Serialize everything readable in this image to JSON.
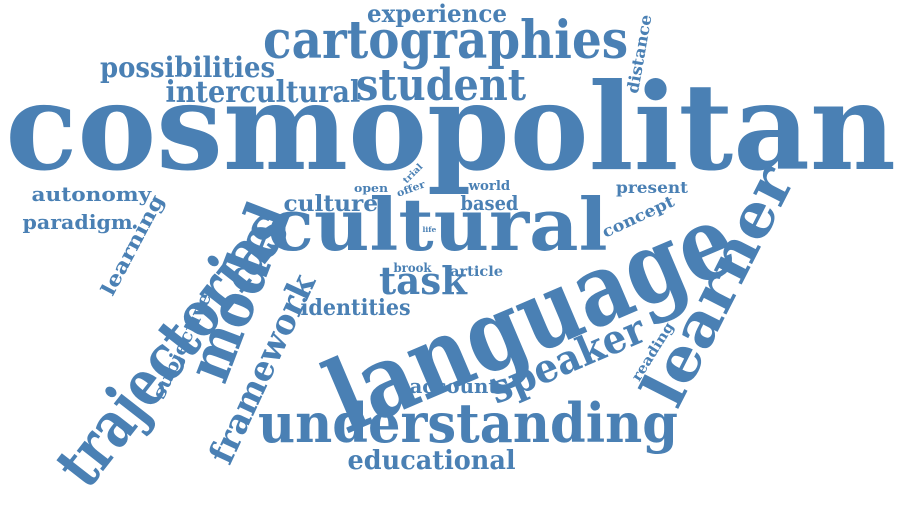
{
  "color": "#4a80b4",
  "words": [
    {
      "text": "cosmopolitan"
    },
    {
      "text": "language"
    },
    {
      "text": "cultural"
    },
    {
      "text": "understanding"
    },
    {
      "text": "trajectorias"
    },
    {
      "text": "learner"
    },
    {
      "text": "cartographies"
    },
    {
      "text": "model"
    },
    {
      "text": "speaker"
    },
    {
      "text": "student"
    },
    {
      "text": "framework"
    },
    {
      "text": "intercultural"
    },
    {
      "text": "possibilities"
    },
    {
      "text": "experience"
    },
    {
      "text": "educational"
    },
    {
      "text": "task"
    },
    {
      "text": "culture"
    },
    {
      "text": "identities"
    },
    {
      "text": "autonomy"
    },
    {
      "text": "paradigm"
    },
    {
      "text": "learning"
    },
    {
      "text": "based"
    },
    {
      "text": "subjective"
    },
    {
      "text": "account"
    },
    {
      "text": "concept"
    },
    {
      "text": "present"
    },
    {
      "text": "distance"
    },
    {
      "text": "reading"
    },
    {
      "text": "article"
    },
    {
      "text": "brook"
    },
    {
      "text": "world"
    },
    {
      "text": "open"
    },
    {
      "text": "offer"
    },
    {
      "text": "trial"
    },
    {
      "text": "life"
    }
  ]
}
